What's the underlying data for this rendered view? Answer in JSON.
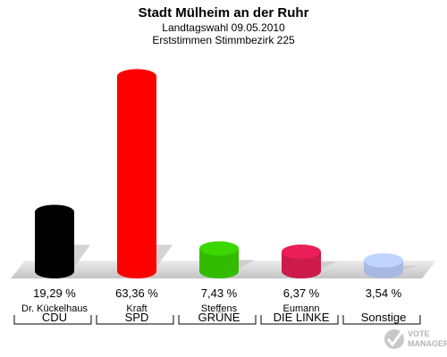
{
  "header": {
    "title": "Stadt Mülheim an der Ruhr",
    "subtitle_1": "Landtagswahl 09.05.2010",
    "subtitle_2": "Erststimmen Stimmbezirk 225"
  },
  "watermark": {
    "line1": "VOTE",
    "line2": "MANAGER"
  },
  "chart_data": {
    "type": "bar",
    "title": "Stadt Mülheim an der Ruhr",
    "subtitle": "Landtagswahl 09.05.2010 / Erststimmen Stimmbezirk 225",
    "unit": "%",
    "ylim": [
      0,
      70
    ],
    "grid": false,
    "categories": [
      "CDU",
      "SPD",
      "GRÜNE",
      "DIE LINKE",
      "Sonstige"
    ],
    "candidates": [
      "Dr. Kückelhaus",
      "Kraft",
      "Steffens",
      "Eumann",
      ""
    ],
    "values": [
      19.29,
      63.36,
      7.43,
      6.37,
      3.54
    ],
    "value_labels": [
      "19,29 %",
      "63,36 %",
      "7,43 %",
      "6,37 %",
      "3,54 %"
    ],
    "colors": [
      "#000000",
      "#ff0000",
      "#33bb00",
      "#cc1a4d",
      "#a8b8e0"
    ]
  }
}
